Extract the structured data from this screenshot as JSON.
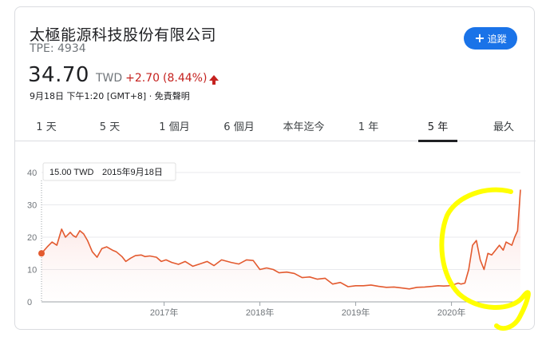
{
  "company": {
    "name": "太極能源科技股份有限公司",
    "ticker": "TPE: 4934"
  },
  "follow_button": {
    "label": "追蹤",
    "icon": "plus-icon"
  },
  "quote": {
    "price": "34.70",
    "currency": "TWD",
    "change": "+2.70",
    "change_pct": "(8.44%)",
    "direction_icon": "arrow-up-icon",
    "timestamp": "9月18日 下午1:20 [GMT+8] · 免責聲明"
  },
  "tabs": [
    {
      "label": "1 天"
    },
    {
      "label": "5 天"
    },
    {
      "label": "1 個月"
    },
    {
      "label": "6 個月"
    },
    {
      "label": "本年迄今"
    },
    {
      "label": "1 年"
    },
    {
      "label": "5 年"
    },
    {
      "label": "最久"
    }
  ],
  "active_tab": "5 年",
  "colors": {
    "line": "#e35a2f",
    "negative": "#c5221f",
    "accent": "#1a73e8",
    "highlight": "#ffff00"
  },
  "tooltip": {
    "value": "15.00 TWD",
    "date": "2015年9月18日"
  },
  "chart_data": {
    "type": "line",
    "ylim": [
      0,
      40
    ],
    "yticks": [
      "40",
      "30",
      "20",
      "10",
      "0"
    ],
    "ytick_values": [
      40,
      30,
      20,
      10,
      0
    ],
    "xticks": [
      "2017年",
      "2018年",
      "2019年",
      "2020年"
    ],
    "xtick_values": [
      2017,
      2018,
      2019,
      2020
    ],
    "xlim": [
      2015.72,
      2020.72
    ],
    "grid": true,
    "series": [
      {
        "x": [
          2015.72,
          2015.78,
          2015.83,
          2015.88,
          2015.93,
          2015.97,
          2016.02,
          2016.05,
          2016.08,
          2016.12,
          2016.16,
          2016.2,
          2016.25,
          2016.3,
          2016.35,
          2016.4,
          2016.46,
          2016.5,
          2016.56,
          2016.6,
          2016.65,
          2016.7,
          2016.76,
          2016.8,
          2016.85,
          2016.92,
          2016.97,
          2017.02,
          2017.08,
          2017.15,
          2017.22,
          2017.3,
          2017.37,
          2017.45,
          2017.52,
          2017.6,
          2017.7,
          2017.78,
          2017.86,
          2017.93,
          2018.0,
          2018.07,
          2018.14,
          2018.2,
          2018.28,
          2018.36,
          2018.44,
          2018.52,
          2018.6,
          2018.68,
          2018.76,
          2018.84,
          2018.92,
          2019.0,
          2019.08,
          2019.16,
          2019.24,
          2019.32,
          2019.4,
          2019.48,
          2019.56,
          2019.64,
          2019.72,
          2019.8,
          2019.86,
          2019.92,
          2019.97,
          2020.02,
          2020.04,
          2020.07,
          2020.1,
          2020.14,
          2020.18,
          2020.22,
          2020.26,
          2020.3,
          2020.34,
          2020.38,
          2020.42,
          2020.46,
          2020.5,
          2020.54,
          2020.57,
          2020.6,
          2020.63,
          2020.66,
          2020.69,
          2020.72
        ],
        "y": [
          15.0,
          17.0,
          18.5,
          17.5,
          22.5,
          20.0,
          21.5,
          20.5,
          20.0,
          22.0,
          21.0,
          19.0,
          15.5,
          13.8,
          16.5,
          17.0,
          16.0,
          15.5,
          14.0,
          12.5,
          13.5,
          14.3,
          14.5,
          14.0,
          14.2,
          13.8,
          12.5,
          13.0,
          12.2,
          11.6,
          12.5,
          11.0,
          11.7,
          12.5,
          11.2,
          13.0,
          12.2,
          11.7,
          13.0,
          12.8,
          10.0,
          10.5,
          10.0,
          9.0,
          9.2,
          8.8,
          7.5,
          7.7,
          7.0,
          7.3,
          5.5,
          6.0,
          4.7,
          5.0,
          5.0,
          5.2,
          4.8,
          4.5,
          4.6,
          4.3,
          4.0,
          4.5,
          4.6,
          4.8,
          5.0,
          4.9,
          5.0,
          5.2,
          5.5,
          5.8,
          5.5,
          5.8,
          10.0,
          17.5,
          19.0,
          13.0,
          10.0,
          15.0,
          14.5,
          16.0,
          17.5,
          16.0,
          18.5,
          18.0,
          17.5,
          20.0,
          22.0,
          34.7
        ]
      }
    ]
  }
}
